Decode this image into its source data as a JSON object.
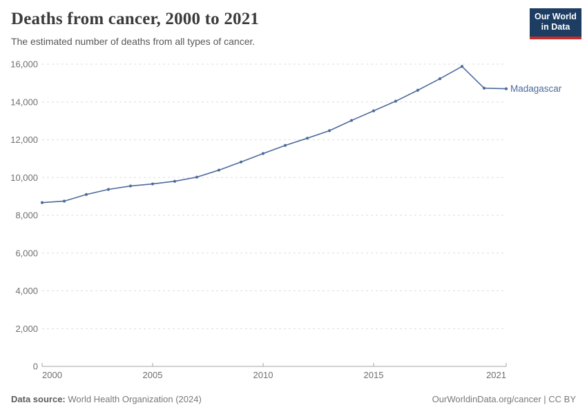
{
  "header": {
    "title": "Deaths from cancer, 2000 to 2021",
    "subtitle": "The estimated number of deaths from all types of cancer.",
    "logo": {
      "line1": "Our World",
      "line2": "in Data"
    }
  },
  "footer": {
    "source_label": "Data source:",
    "source_value": " World Health Organization (2024)",
    "link": "OurWorldinData.org/cancer | CC BY"
  },
  "colors": {
    "series_line": "#4c6a9c",
    "series_label": "#4c6a9c",
    "gridline": "#dcdcdc",
    "axis_line": "#a3a3a3",
    "tick_text": "#6e6e6e",
    "logo_navy": "#1d3d63",
    "logo_red": "#c62d29",
    "title_text": "#3b3b3b",
    "subtitle_text": "#575757"
  },
  "chart_data": {
    "type": "line",
    "title": "Deaths from cancer, 2000 to 2021",
    "x": [
      2000,
      2001,
      2002,
      2003,
      2004,
      2005,
      2006,
      2007,
      2008,
      2009,
      2010,
      2011,
      2012,
      2013,
      2014,
      2015,
      2016,
      2017,
      2018,
      2019,
      2020,
      2021
    ],
    "series": [
      {
        "name": "Madagascar",
        "values": [
          8670,
          8750,
          9100,
          9370,
          9550,
          9660,
          9800,
          10020,
          10390,
          10820,
          11270,
          11700,
          12080,
          12480,
          13020,
          13530,
          14040,
          14620,
          15230,
          15880,
          14730,
          14700
        ]
      }
    ],
    "xticks": [
      2000,
      2005,
      2010,
      2015,
      2021
    ],
    "yticks": [
      0,
      2000,
      4000,
      6000,
      8000,
      10000,
      12000,
      14000,
      16000
    ],
    "xlim": [
      2000,
      2021
    ],
    "ylim": [
      0,
      16000
    ],
    "xlabel": "",
    "ylabel": "",
    "grid": "horizontal-dashed",
    "legend_position": "end-of-line-label"
  }
}
